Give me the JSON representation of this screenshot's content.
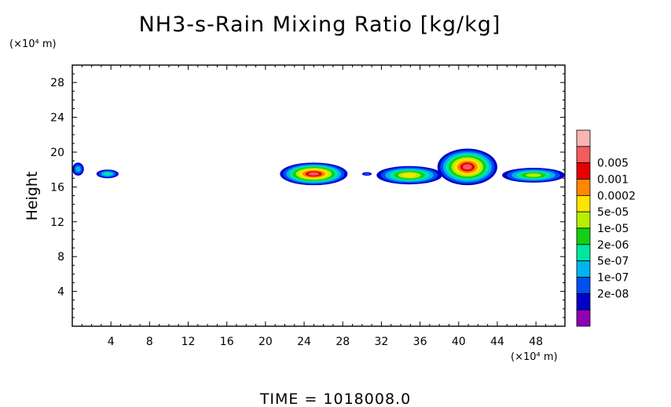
{
  "chart_data": {
    "type": "heatmap",
    "title": "NH3-s-Rain Mixing Ratio [kg/kg]",
    "xlabel": "",
    "ylabel": "Height",
    "x_unit": "(×10⁴ m)",
    "y_unit": "(×10⁴ m)",
    "x_ticks": [
      4,
      8,
      12,
      16,
      20,
      24,
      28,
      32,
      36,
      40,
      44,
      48
    ],
    "y_ticks": [
      4,
      8,
      12,
      16,
      20,
      24,
      28
    ],
    "xlim": [
      0,
      51
    ],
    "ylim": [
      0,
      30
    ],
    "grid": false,
    "legend_position": "right",
    "colorbar": [
      {
        "label": "",
        "color": "#fab4b4"
      },
      {
        "label": "0.005",
        "color": "#f35c5c"
      },
      {
        "label": "0.001",
        "color": "#e60000"
      },
      {
        "label": "0.0002",
        "color": "#ff8800"
      },
      {
        "label": "5e-05",
        "color": "#ffe400"
      },
      {
        "label": "1e-05",
        "color": "#b4f000"
      },
      {
        "label": "2e-06",
        "color": "#14d014"
      },
      {
        "label": "5e-07",
        "color": "#00e8a0"
      },
      {
        "label": "1e-07",
        "color": "#00b4f0"
      },
      {
        "label": "2e-08",
        "color": "#0050f0"
      },
      {
        "label": "",
        "color": "#0000c8"
      },
      {
        "label": "",
        "color": "#8e00b4"
      }
    ],
    "features": [
      {
        "x": [
          0,
          1.2
        ],
        "y": [
          17.3,
          18.8
        ],
        "peak_level": 8
      },
      {
        "x": [
          2.5,
          4.8
        ],
        "y": [
          17.0,
          18.0
        ],
        "peak_level": 7
      },
      {
        "x": [
          21.5,
          28.5
        ],
        "y": [
          16.2,
          18.8
        ],
        "peak_level": 1
      },
      {
        "x": [
          30.0,
          31.0
        ],
        "y": [
          17.3,
          17.7
        ],
        "peak_level": 9
      },
      {
        "x": [
          31.5,
          38.3
        ],
        "y": [
          16.3,
          18.4
        ],
        "peak_level": 4
      },
      {
        "x": [
          37.8,
          44.0
        ],
        "y": [
          16.2,
          20.4
        ],
        "peak_level": 1
      },
      {
        "x": [
          44.5,
          51.0
        ],
        "y": [
          16.5,
          18.2
        ],
        "peak_level": 5
      }
    ]
  },
  "footer": {
    "time_label": "TIME  =  1018008.0"
  }
}
